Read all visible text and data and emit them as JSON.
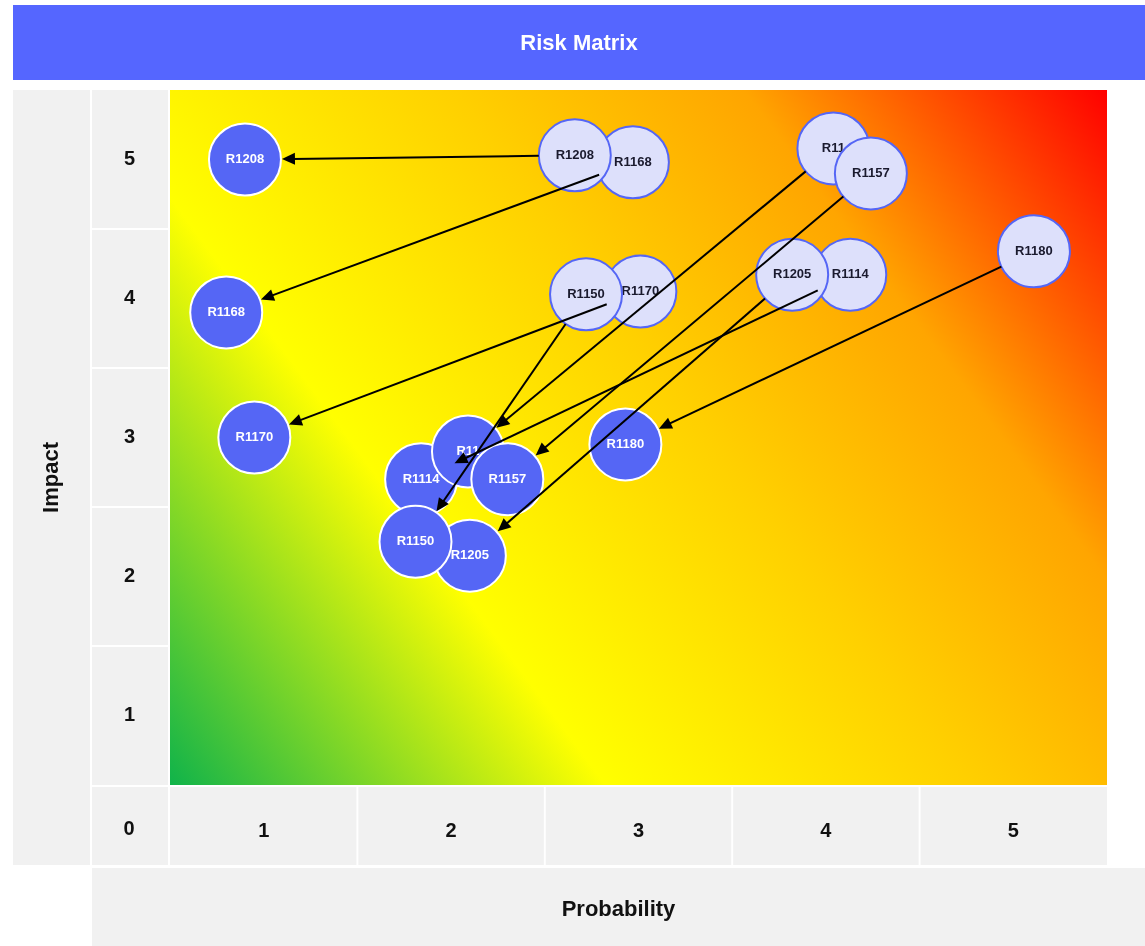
{
  "chart_data": {
    "type": "scatter",
    "title": "Risk Matrix",
    "xlabel": "Probability",
    "ylabel": "Impact",
    "xlim": [
      0.5,
      5.5
    ],
    "ylim": [
      0.5,
      5.5
    ],
    "xticks": [
      1,
      2,
      3,
      4,
      5
    ],
    "yticks": [
      1,
      2,
      3,
      4,
      5
    ],
    "marker": "circle",
    "annotations": [
      "0"
    ],
    "series": [
      {
        "color": "#dde0fb",
        "x": [
          2.97,
          2.66,
          3.01,
          4.13,
          3.82,
          2.72,
          4.04,
          4.24,
          5.11
        ],
        "values": [
          4.98,
          5.03,
          4.05,
          4.17,
          4.17,
          4.03,
          5.08,
          4.9,
          4.34
        ],
        "value_labels": [
          "R1168",
          "R1208",
          "R1170",
          "R1114",
          "R1205",
          "R1150",
          "R11",
          "R1157",
          "R1180"
        ]
      },
      {
        "color": "#5566f5",
        "x": [
          0.8,
          0.9,
          0.95,
          1.84,
          2.1,
          1.81,
          2.09,
          2.3,
          2.93
        ],
        "values": [
          3.9,
          5.0,
          3.0,
          2.7,
          2.15,
          2.25,
          2.9,
          2.7,
          2.95
        ],
        "value_labels": [
          "R1168",
          "R1208",
          "R1170",
          "R1114",
          "R1205",
          "R1150",
          "R11",
          "R1157",
          "R1180"
        ]
      }
    ]
  }
}
